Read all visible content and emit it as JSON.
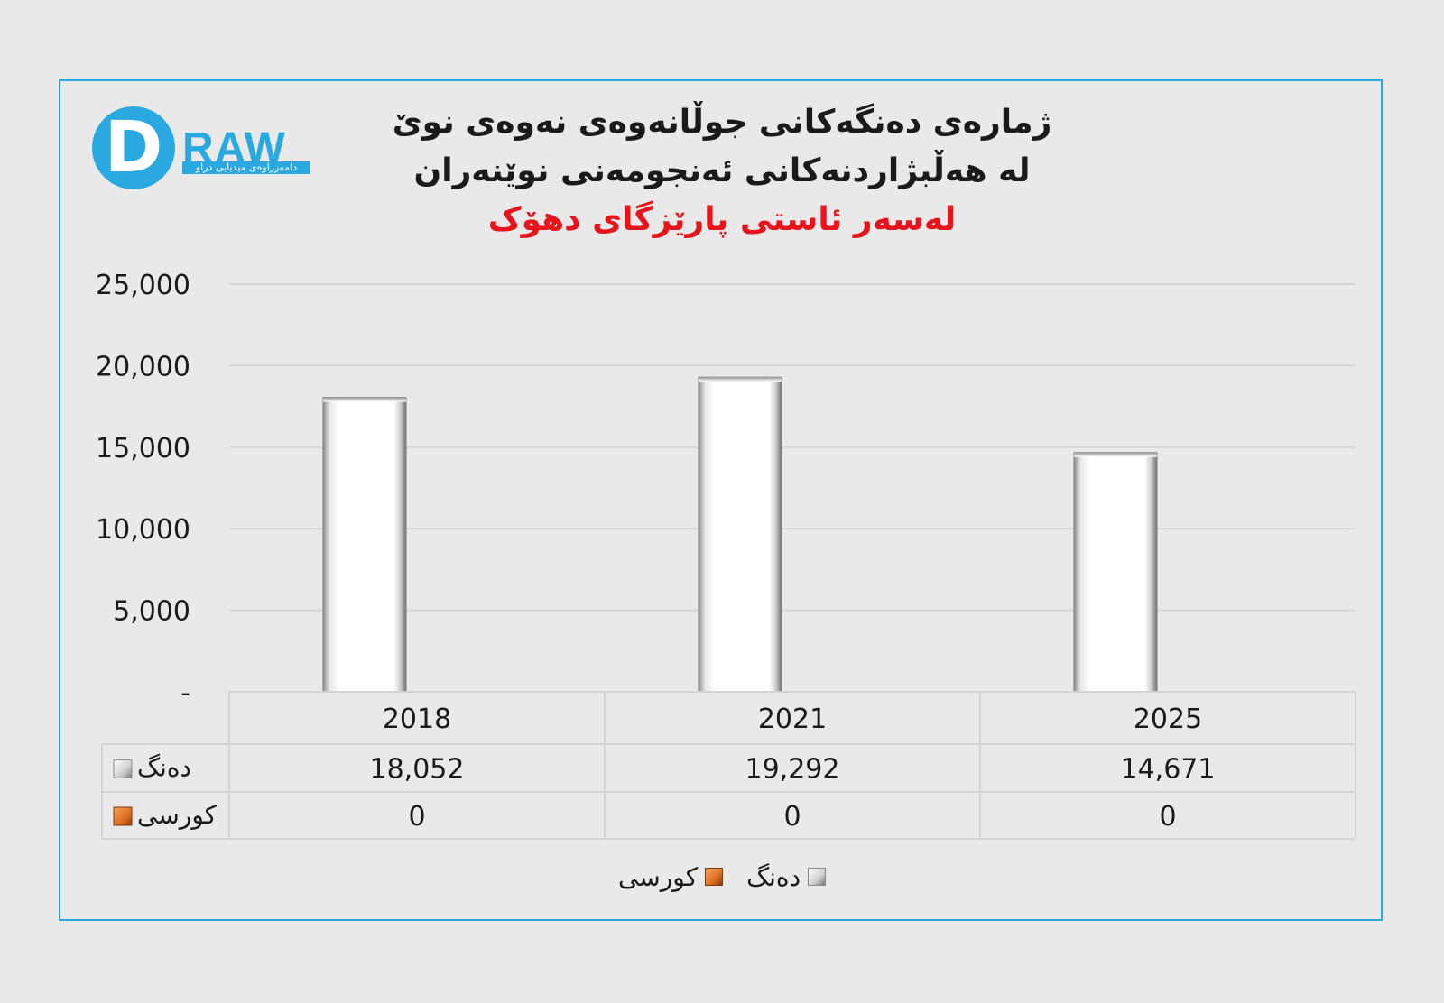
{
  "logo": {
    "letter": "D",
    "word": "RAW",
    "tagline": "دامەزراوەی میدیایی دراو"
  },
  "title": {
    "line1": "ژمارەی دەنگەکانی جوڵانەوەی نەوەی نوێ",
    "line2": "لە هەڵبژاردنەکانی ئەنجومەنی نوێنەران",
    "line3": "لەسەر ئاستی پارێزگای دهۆک"
  },
  "colors": {
    "frame": "#29a9e0",
    "title_accent": "#e8141b",
    "series_votes": "#ffffff",
    "series_seats": "#e07020"
  },
  "chart_data": {
    "type": "bar",
    "categories": [
      "2018",
      "2021",
      "2025"
    ],
    "series": [
      {
        "name": "دەنگ",
        "values": [
          18052,
          19292,
          14671
        ],
        "labels": [
          "18,052",
          "19,292",
          "14,671"
        ]
      },
      {
        "name": "کورسی",
        "values": [
          0,
          0,
          0
        ],
        "labels": [
          "0",
          "0",
          "0"
        ]
      }
    ],
    "ylim": [
      0,
      25000
    ],
    "yticks": [
      0,
      5000,
      10000,
      15000,
      20000,
      25000
    ],
    "ytick_labels": [
      "-",
      "5,000",
      "10,000",
      "15,000",
      "20,000",
      "25,000"
    ],
    "grid": true,
    "legend": "bottom",
    "data_table": true
  }
}
